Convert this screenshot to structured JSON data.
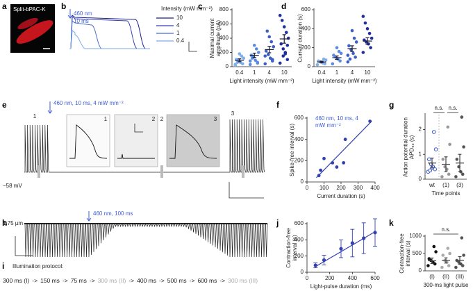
{
  "chart_data": [
    {
      "panel": "a",
      "type": "image",
      "label": "Split-bPAC-K"
    },
    {
      "panel": "b",
      "type": "traces",
      "annotation": [
        "460 nm",
        "10 ms"
      ],
      "legend_title": "Intensity (mW mm⁻²)",
      "series": [
        {
          "name": "10",
          "color": "#1c1f8a"
        },
        {
          "name": "4",
          "color": "#3340b0"
        },
        {
          "name": "1",
          "color": "#4a6ed0"
        },
        {
          "name": "0.4",
          "color": "#7eaae8"
        }
      ]
    },
    {
      "panel": "c",
      "type": "dotplot",
      "ylabel": "Maximal current amplitude (pA)",
      "xlabel": "Light intensity (mW mm⁻²)",
      "categories": [
        "0.4",
        "1",
        "4",
        "10"
      ],
      "colors": [
        "#7fb0ea",
        "#5b8be0",
        "#3d5fc8",
        "#1f2f9e"
      ],
      "mean_color": "#1a1a3a",
      "values": [
        [
          20,
          40,
          60,
          80,
          100,
          120,
          150,
          180,
          60,
          30
        ],
        [
          30,
          60,
          90,
          130,
          160,
          200,
          250,
          300,
          120,
          80,
          50
        ],
        [
          40,
          80,
          120,
          170,
          220,
          280,
          350,
          420,
          500,
          150,
          100
        ],
        [
          50,
          100,
          180,
          250,
          320,
          400,
          480,
          560,
          650,
          720,
          300,
          200,
          150
        ]
      ],
      "means": [
        90,
        160,
        240,
        390
      ],
      "sems": [
        20,
        30,
        45,
        60
      ],
      "ylim": [
        0,
        800
      ],
      "yticks": [
        0,
        200,
        400,
        600,
        800
      ]
    },
    {
      "panel": "d",
      "type": "dotplot",
      "ylabel": "Current duration (s)",
      "xlabel": "Light intensity (mW mm⁻²)",
      "categories": [
        "0.4",
        "1",
        "4",
        "10"
      ],
      "colors": [
        "#7fb0ea",
        "#5b8be0",
        "#3d5fc8",
        "#1f2f9e"
      ],
      "mean_color": "#1a1a3a",
      "values": [
        [
          20,
          30,
          40,
          50,
          60,
          70,
          80,
          45
        ],
        [
          30,
          60,
          80,
          100,
          120,
          140,
          160,
          200
        ],
        [
          50,
          100,
          140,
          180,
          220,
          260,
          300,
          380,
          80,
          120
        ],
        [
          150,
          200,
          240,
          260,
          280,
          300,
          350,
          400,
          460,
          530
        ]
      ],
      "means": [
        50,
        95,
        190,
        270
      ],
      "sems": [
        8,
        18,
        30,
        35
      ],
      "ylim": [
        0,
        600
      ],
      "yticks": [
        0,
        200,
        400,
        600
      ]
    },
    {
      "panel": "e",
      "type": "spiketrace",
      "annotation": "460 nm, 10 ms, 4 mW mm⁻²",
      "baseline_label": "−58 mV",
      "markers": [
        "1",
        "2",
        "3"
      ]
    },
    {
      "panel": "f",
      "type": "scatter",
      "annotation": "460 nm, 10 ms, 4 mW mm⁻²",
      "ylabel": "Spike-free interval (s)",
      "xlabel": "Current duration (s)",
      "color": "#3340b0",
      "x": [
        70,
        80,
        100,
        150,
        175,
        215,
        225,
        370
      ],
      "values": [
        60,
        110,
        220,
        180,
        140,
        180,
        400,
        570
      ],
      "fit": {
        "x": [
          55,
          380
        ],
        "y": [
          40,
          570
        ]
      },
      "xlim": [
        0,
        400
      ],
      "xticks": [
        0,
        100,
        200,
        300,
        400
      ],
      "ylim": [
        0,
        600
      ],
      "yticks": [
        0,
        200,
        400,
        600
      ]
    },
    {
      "panel": "g",
      "type": "dotplot",
      "ylabel": "Action potential duration APD₉₀ (s)",
      "xlabel": "Time points",
      "categories": [
        "wt",
        "(1)",
        "(3)"
      ],
      "colors": [
        "#3355cc",
        "#999999",
        "#555555"
      ],
      "open": [
        true,
        false,
        false
      ],
      "mean_color": "#444444",
      "values": [
        [
          0.3,
          0.4,
          0.5,
          0.6,
          0.8,
          1.2,
          1.9,
          0.45,
          0.35
        ],
        [
          0.1,
          0.2,
          0.4,
          0.5,
          0.8,
          1.4,
          2.1
        ],
        [
          0.1,
          0.2,
          0.3,
          0.5,
          0.8,
          1.3,
          2.5
        ]
      ],
      "means": [
        0.65,
        0.6,
        0.65
      ],
      "sems": [
        0.2,
        0.3,
        0.35
      ],
      "ylim": [
        0,
        2.6
      ],
      "yticks": [
        0,
        1,
        2
      ],
      "significance": [
        {
          "text": "n.s.",
          "from": 0,
          "to": 1
        },
        {
          "text": "n.s.",
          "from": 1,
          "to": 2
        }
      ]
    },
    {
      "panel": "h",
      "type": "twitchtrace",
      "scale_label": "1.75 µm",
      "annotation": "460 nm, 100 ms"
    },
    {
      "panel": "i",
      "type": "protocol",
      "title": "Illumination protocol:",
      "separator": "->",
      "steps": [
        "300 ms (I)",
        "150 ms",
        "75 ms",
        "300 ms (II)",
        "400 ms",
        "500 ms",
        "600 ms",
        "300 ms (III)"
      ],
      "step_colors": [
        "#222222",
        "#222222",
        "#222222",
        "#aaaaaa",
        "#222222",
        "#222222",
        "#222222",
        "#aaaaaa"
      ]
    },
    {
      "panel": "j",
      "type": "errorline",
      "ylabel": "Contraction-free interval (s)",
      "xlabel": "Light-pulse duration (ms)",
      "color": "#3340b0",
      "x": [
        75,
        150,
        300,
        400,
        500,
        600
      ],
      "values": [
        85,
        150,
        290,
        360,
        420,
        490
      ],
      "errors": [
        30,
        60,
        110,
        170,
        190,
        170
      ],
      "fit": {
        "x": [
          75,
          600
        ],
        "y": [
          70,
          500
        ]
      },
      "xlim": [
        0,
        600
      ],
      "xticks": [
        0,
        200,
        400,
        600
      ],
      "ylim": [
        0,
        600
      ],
      "yticks": [
        0,
        200,
        400,
        600
      ]
    },
    {
      "panel": "k",
      "type": "dotplot",
      "ylabel": "Contraction-free interval (s)",
      "xlabel": "300-ms light pulse",
      "categories": [
        "(I)",
        "(II)",
        "(III)"
      ],
      "colors": [
        "#111111",
        "#aaaaaa",
        "#555555"
      ],
      "mean_color": "#444444",
      "values": [
        [
          150,
          200,
          250,
          300,
          350,
          550,
          700
        ],
        [
          100,
          150,
          250,
          300,
          450,
          500,
          650
        ],
        [
          100,
          150,
          200,
          250,
          300,
          450,
          950
        ]
      ],
      "means": [
        290,
        300,
        300
      ],
      "sems": [
        80,
        75,
        110
      ],
      "ylim": [
        0,
        1000
      ],
      "yticks": [
        0,
        500,
        1000
      ],
      "significance": [
        {
          "text": "n.s.",
          "from": 0,
          "to": 2
        }
      ]
    }
  ]
}
